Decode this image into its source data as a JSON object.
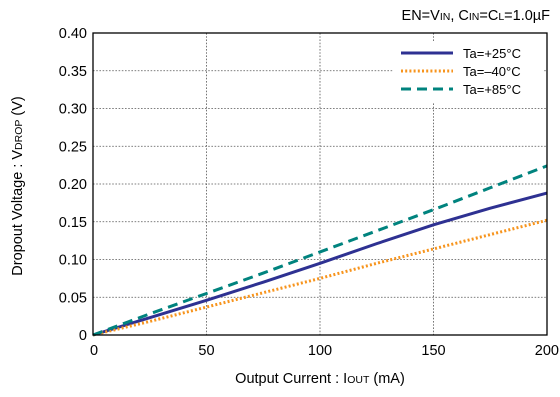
{
  "chart_data": {
    "type": "line",
    "condition": {
      "en": "EN=V",
      "en_sub": "IN",
      "cin": ", C",
      "cin_sub": "IN",
      "cl": "=C",
      "cl_sub": "L",
      "value": "=1.0µF"
    },
    "xlabel": {
      "text": "Output Current : I",
      "sub": "OUT",
      "unit": " (mA)"
    },
    "ylabel": {
      "text": "Dropout Voltage : V",
      "sub": "DROP",
      "unit": " (V)"
    },
    "xlim": [
      0,
      200
    ],
    "ylim": [
      0,
      0.4
    ],
    "x_ticks": [
      0,
      50,
      100,
      150,
      200
    ],
    "x_tick_labels": [
      "0",
      "50",
      "100",
      "150",
      "200"
    ],
    "y_ticks": [
      0,
      0.05,
      0.1,
      0.15,
      0.2,
      0.25,
      0.3,
      0.35,
      0.4
    ],
    "y_tick_labels": [
      "0",
      "0.05",
      "0.10",
      "0.15",
      "0.20",
      "0.25",
      "0.30",
      "0.35",
      "0.40"
    ],
    "grid": true,
    "legend_position": "top-right",
    "series": [
      {
        "name": "Ta=+25°C",
        "color": "#2e3192",
        "style": "solid",
        "x": [
          0,
          25,
          50,
          75,
          100,
          125,
          150,
          175,
          200
        ],
        "y": [
          0,
          0.023,
          0.046,
          0.07,
          0.095,
          0.121,
          0.146,
          0.168,
          0.188
        ]
      },
      {
        "name": "Ta=–40°C",
        "color": "#f7941d",
        "style": "dotted",
        "x": [
          0,
          25,
          50,
          75,
          100,
          125,
          150,
          175,
          200
        ],
        "y": [
          0,
          0.018,
          0.037,
          0.056,
          0.075,
          0.095,
          0.114,
          0.133,
          0.152
        ]
      },
      {
        "name": "Ta=+85°C",
        "color": "#00837e",
        "style": "dashed",
        "x": [
          0,
          25,
          50,
          75,
          100,
          125,
          150,
          175,
          200
        ],
        "y": [
          0,
          0.028,
          0.055,
          0.082,
          0.11,
          0.138,
          0.166,
          0.195,
          0.224
        ]
      }
    ]
  }
}
